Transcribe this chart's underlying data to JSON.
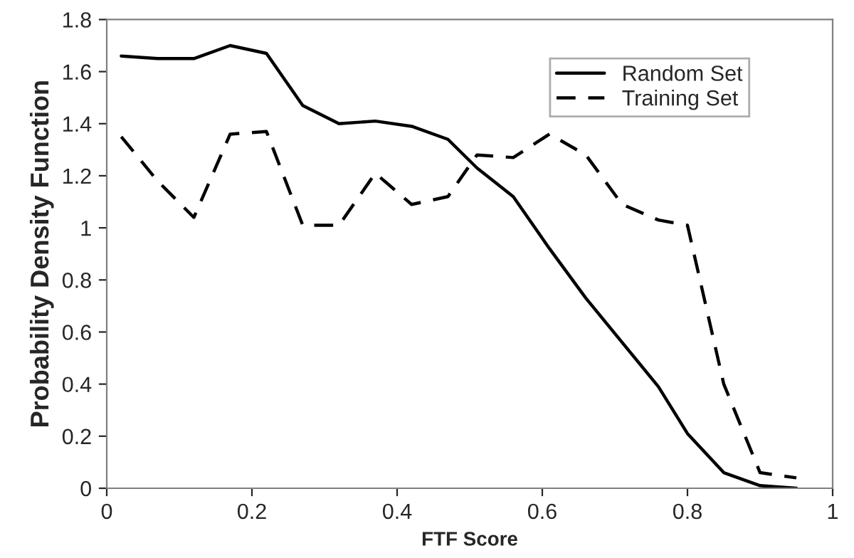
{
  "chart_data": {
    "type": "line",
    "xlabel": "FTF Score",
    "ylabel": "Probability Density Function",
    "x": [
      0.02,
      0.07,
      0.12,
      0.17,
      0.22,
      0.27,
      0.32,
      0.37,
      0.42,
      0.47,
      0.51,
      0.56,
      0.61,
      0.66,
      0.71,
      0.76,
      0.8,
      0.85,
      0.9,
      0.95
    ],
    "series": [
      {
        "name": "Random Set",
        "color": "#000000",
        "line_style": "solid",
        "values": [
          1.66,
          1.65,
          1.65,
          1.7,
          1.67,
          1.47,
          1.4,
          1.41,
          1.39,
          1.34,
          1.23,
          1.12,
          0.92,
          0.73,
          0.56,
          0.39,
          0.21,
          0.06,
          0.01,
          0.0
        ]
      },
      {
        "name": "Training Set",
        "color": "#000000",
        "line_style": "dashed",
        "values": [
          1.35,
          1.18,
          1.04,
          1.36,
          1.37,
          1.01,
          1.01,
          1.21,
          1.09,
          1.12,
          1.28,
          1.27,
          1.36,
          1.28,
          1.09,
          1.03,
          1.01,
          0.4,
          0.06,
          0.04
        ]
      }
    ],
    "xlim": [
      0,
      1
    ],
    "xticks": [
      0,
      0.2,
      0.4,
      0.6,
      0.8,
      1
    ],
    "ylim": [
      0,
      1.8
    ],
    "yticks": [
      0,
      0.2,
      0.4,
      0.6,
      0.8,
      1,
      1.2,
      1.4,
      1.6,
      1.8
    ],
    "grid": false,
    "legend": "top right",
    "marker": "none"
  }
}
